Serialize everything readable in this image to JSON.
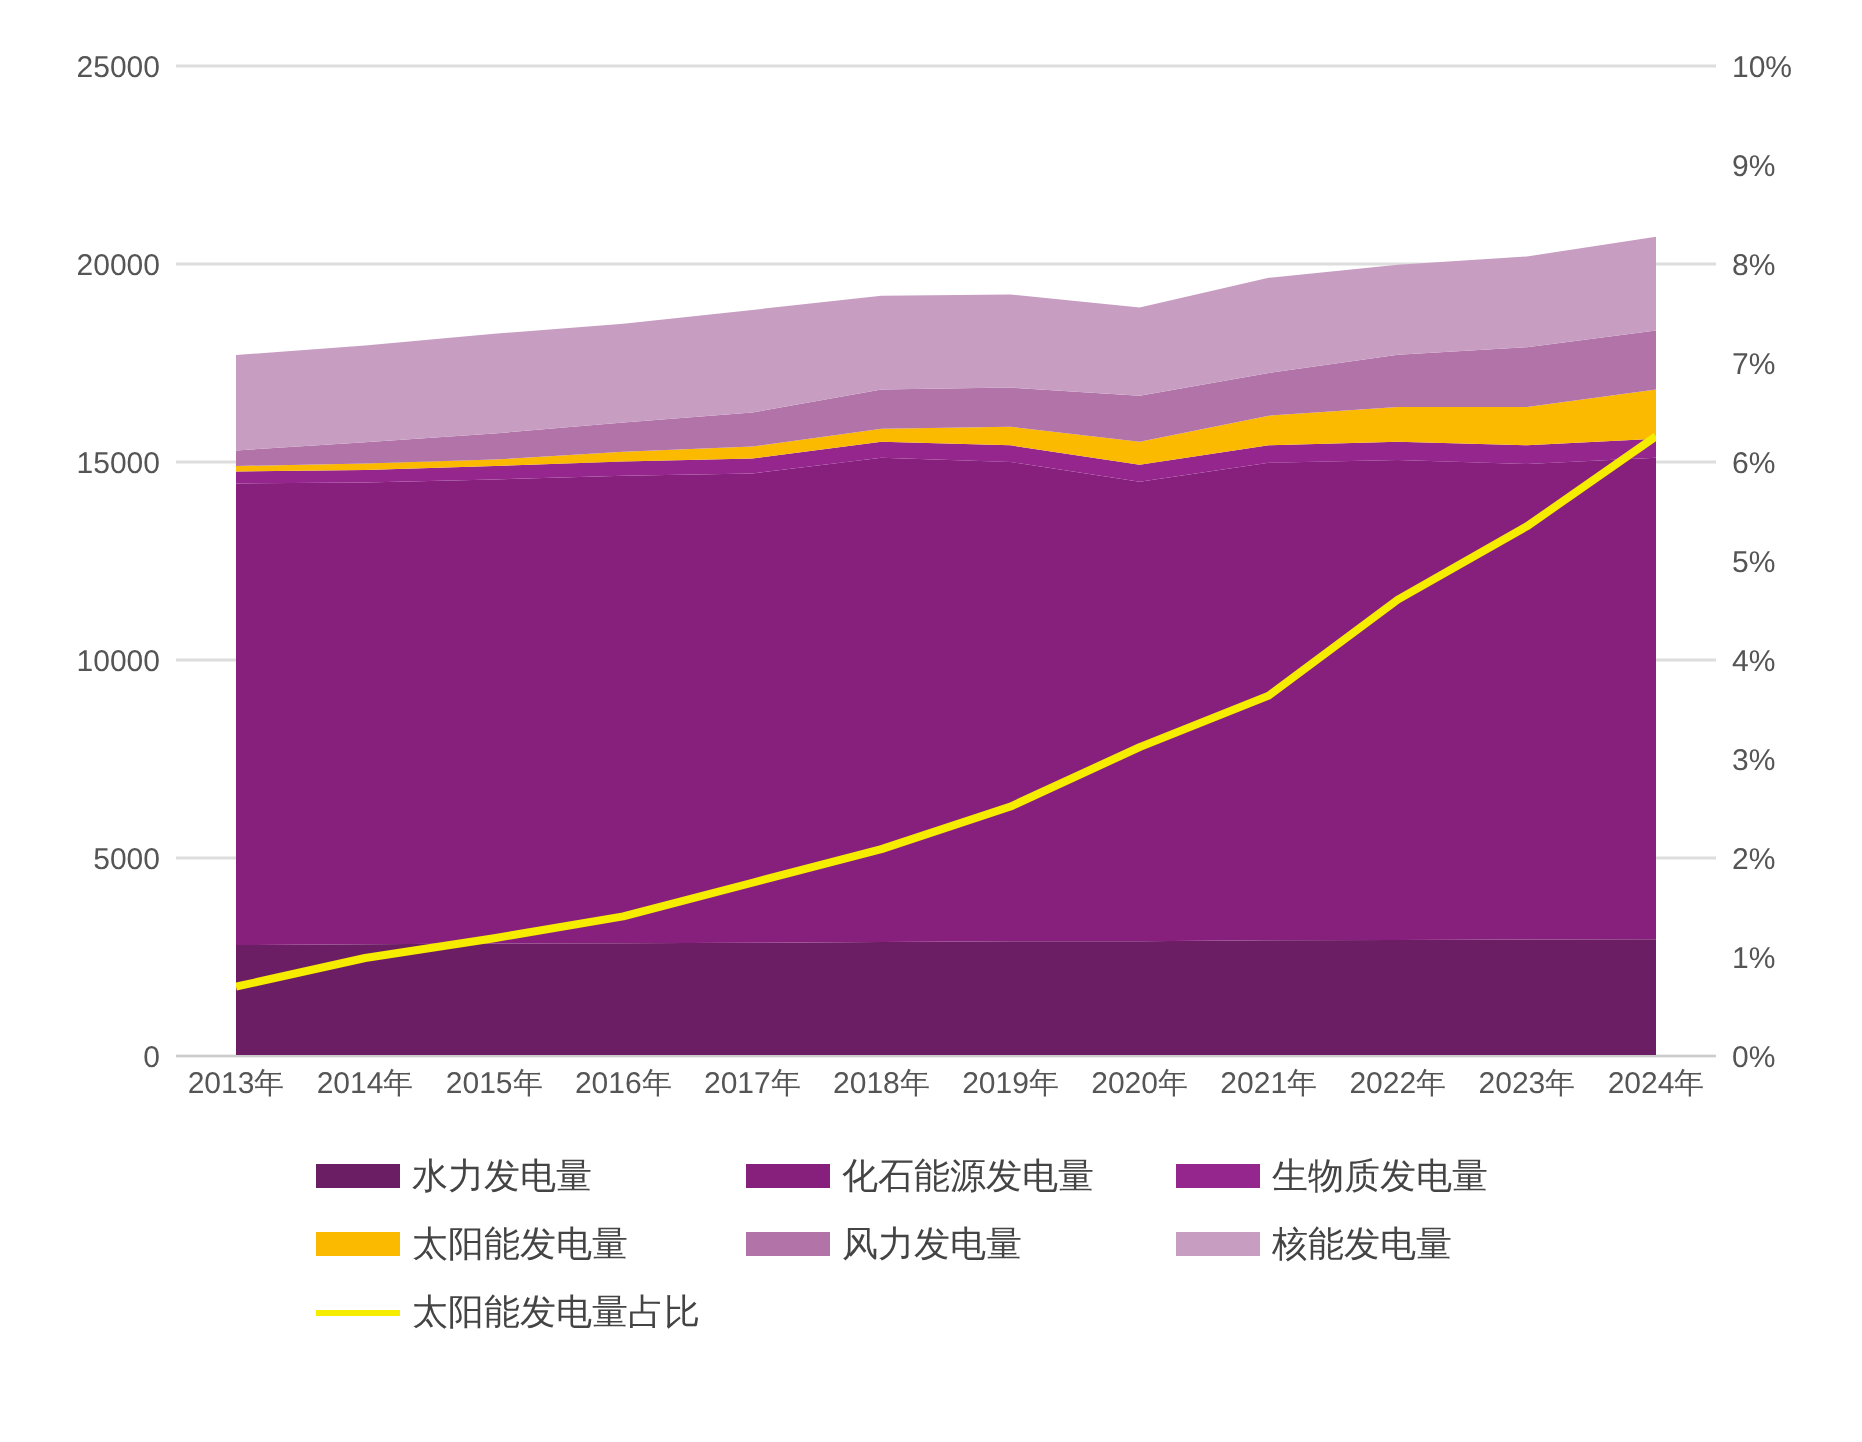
{
  "chart_data": {
    "type": "area",
    "stacked": true,
    "categories": [
      "2013年",
      "2014年",
      "2015年",
      "2016年",
      "2017年",
      "2018年",
      "2019年",
      "2020年",
      "2021年",
      "2022年",
      "2023年",
      "2024年"
    ],
    "series": [
      {
        "name": "水力发电量",
        "color": "#6b1e63",
        "values": [
          2800,
          2820,
          2840,
          2850,
          2860,
          2880,
          2900,
          2900,
          2920,
          2930,
          2940,
          2950
        ]
      },
      {
        "name": "化石能源发电量",
        "color": "#86207c",
        "values": [
          11660,
          11660,
          11720,
          11800,
          11850,
          12230,
          12100,
          11600,
          12060,
          12120,
          12010,
          12160
        ]
      },
      {
        "name": "生物质发电量",
        "color": "#95268e",
        "values": [
          300,
          320,
          340,
          360,
          380,
          400,
          420,
          430,
          440,
          460,
          470,
          480
        ]
      },
      {
        "name": "太阳能发电量",
        "color": "#fbb900",
        "values": [
          140,
          160,
          160,
          250,
          300,
          330,
          470,
          580,
          750,
          880,
          970,
          1240
        ]
      },
      {
        "name": "风力发电量",
        "color": "#b173a8",
        "values": [
          390,
          540,
          660,
          740,
          860,
          990,
          990,
          1160,
          1080,
          1320,
          1510,
          1490
        ]
      },
      {
        "name": "核能发电量",
        "color": "#c79dc2",
        "values": [
          2410,
          2440,
          2520,
          2490,
          2590,
          2370,
          2350,
          2230,
          2400,
          2270,
          2290,
          2370
        ]
      },
      {
        "name": "太阳能发电量占比",
        "type": "line",
        "axis": "y2",
        "color": "#f5ec00",
        "values": [
          0.7,
          0.99,
          1.19,
          1.41,
          1.75,
          2.09,
          2.52,
          3.12,
          3.64,
          4.61,
          5.35,
          6.26
        ]
      }
    ],
    "ylim": [
      0,
      25000
    ],
    "yticks": [
      0,
      5000,
      10000,
      15000,
      20000,
      25000
    ],
    "y2lim": [
      0,
      10
    ],
    "y2ticks": [
      {
        "value": 0,
        "label": "0%"
      },
      {
        "value": 1,
        "label": "1%"
      },
      {
        "value": 2,
        "label": "2%"
      },
      {
        "value": 3,
        "label": "3%"
      },
      {
        "value": 4,
        "label": "4%"
      },
      {
        "value": 5,
        "label": "5%"
      },
      {
        "value": 6,
        "label": "6%"
      },
      {
        "value": 7,
        "label": "7%"
      },
      {
        "value": 8,
        "label": "8%"
      },
      {
        "value": 9,
        "label": "9%"
      },
      {
        "value": 10,
        "label": "10%"
      }
    ],
    "grid": "y",
    "legend": "bottom",
    "marker": "none"
  }
}
